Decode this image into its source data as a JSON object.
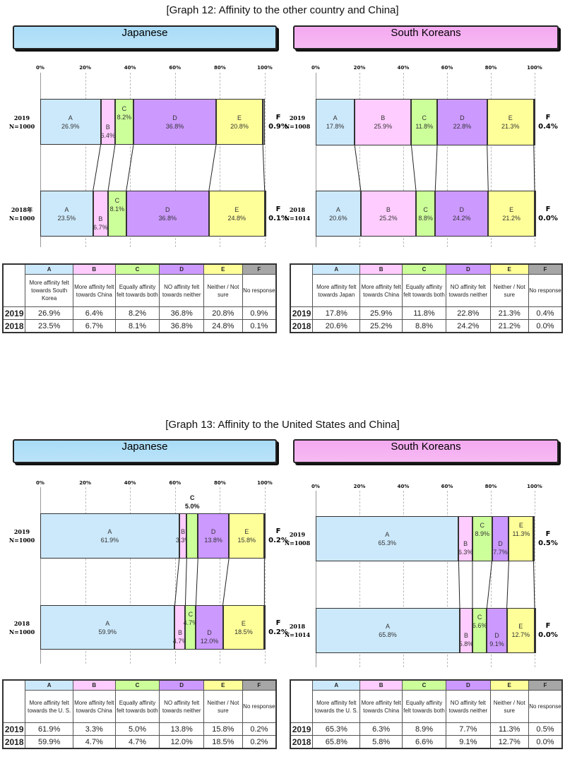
{
  "graphs": [
    {
      "title": "[Graph 12: Affinity to the other country and China]"
    },
    {
      "title": "[Graph 13: Affinity to the United States and China]"
    }
  ],
  "colors": {
    "A": "#cce9fb",
    "B": "#ffccff",
    "C": "#ccff99",
    "D": "#cc99ff",
    "E": "#ffff99",
    "F": "#a6a6a6",
    "japanese_header": "#a9dcf7",
    "korean_header": "#f4a9f0"
  },
  "chart_data": [
    {
      "type": "bar",
      "stacked": true,
      "orientation": "horizontal",
      "graph": 0,
      "header": "Japanese",
      "ticks": [
        "0%",
        "20%",
        "40%",
        "60%",
        "80%",
        "100%"
      ],
      "xlim": [
        0,
        100
      ],
      "grid": true,
      "categories": [
        "A",
        "B",
        "C",
        "D",
        "E",
        "F"
      ],
      "descriptions": [
        "More affinity felt towards South Korea",
        "More affinity felt towards China",
        "Equally affinity felt towards both",
        "NO affinity felt towards neither",
        "Neither / Not sure",
        "No response"
      ],
      "rows": [
        {
          "year": "2019",
          "label": "2019",
          "n": "N=1000",
          "values": [
            26.9,
            6.4,
            8.2,
            36.8,
            20.8,
            0.9
          ],
          "texts": [
            "26.9%",
            "6.4%",
            "8.2%",
            "36.8%",
            "20.8%",
            "0.9%"
          ]
        },
        {
          "year": "2018",
          "label": "2018年",
          "n": "N=1000",
          "values": [
            23.5,
            6.7,
            8.1,
            36.8,
            24.8,
            0.1
          ],
          "texts": [
            "23.5%",
            "6.7%",
            "8.1%",
            "36.8%",
            "24.8%",
            "0.1%"
          ]
        }
      ]
    },
    {
      "type": "bar",
      "stacked": true,
      "orientation": "horizontal",
      "graph": 0,
      "header": "South Koreans",
      "ticks": [
        "0%",
        "20%",
        "40%",
        "60%",
        "80%",
        "100%"
      ],
      "xlim": [
        0,
        100
      ],
      "grid": true,
      "categories": [
        "A",
        "B",
        "C",
        "D",
        "E",
        "F"
      ],
      "descriptions": [
        "More affinity felt towards Japan",
        "More affinity felt towards China",
        "Equally affinity felt towards both",
        "NO affinity felt towards neither",
        "Neither / Not sure",
        "No response"
      ],
      "rows": [
        {
          "year": "2019",
          "label": "2019",
          "n": "N=1008",
          "values": [
            17.8,
            25.9,
            11.8,
            22.8,
            21.3,
            0.4
          ],
          "texts": [
            "17.8%",
            "25.9%",
            "11.8%",
            "22.8%",
            "21.3%",
            "0.4%"
          ]
        },
        {
          "year": "2018",
          "label": "2018",
          "n": "N=1014",
          "values": [
            20.6,
            25.2,
            8.8,
            24.2,
            21.2,
            0.0
          ],
          "texts": [
            "20.6%",
            "25.2%",
            "8.8%",
            "24.2%",
            "21.2%",
            "0.0%"
          ]
        }
      ]
    },
    {
      "type": "bar",
      "stacked": true,
      "orientation": "horizontal",
      "graph": 1,
      "header": "Japanese",
      "ticks": [
        "0%",
        "20%",
        "40%",
        "60%",
        "80%",
        "100%"
      ],
      "xlim": [
        0,
        100
      ],
      "grid": true,
      "categories": [
        "A",
        "B",
        "C",
        "D",
        "E",
        "F"
      ],
      "descriptions": [
        "More affinity felt towards the U. S.",
        "More affinity felt towards China",
        "Equally affinity felt towards both",
        "NO affinity felt towards neither",
        "Neither / Not sure",
        "No response"
      ],
      "rows": [
        {
          "year": "2019",
          "label": "2019",
          "n": "N=1000",
          "values": [
            61.9,
            3.3,
            5.0,
            13.8,
            15.8,
            0.2
          ],
          "texts": [
            "61.9%",
            "3.3%",
            "5.0%",
            "13.8%",
            "15.8%",
            "0.2%"
          ]
        },
        {
          "year": "2018",
          "label": "2018",
          "n": "N=1000",
          "values": [
            59.9,
            4.7,
            4.7,
            12.0,
            18.5,
            0.2
          ],
          "texts": [
            "59.9%",
            "4.7%",
            "4.7%",
            "12.0%",
            "18.5%",
            "0.2%"
          ]
        }
      ]
    },
    {
      "type": "bar",
      "stacked": true,
      "orientation": "horizontal",
      "graph": 1,
      "header": "South Koreans",
      "ticks": [
        "0%",
        "20%",
        "40%",
        "60%",
        "80%",
        "100%"
      ],
      "xlim": [
        0,
        100
      ],
      "grid": true,
      "categories": [
        "A",
        "B",
        "C",
        "D",
        "E",
        "F"
      ],
      "descriptions": [
        "More affinity felt towards the U. S.",
        "More affinity felt towards China",
        "Equally affinity felt towards both",
        "NO affinity felt towards neither",
        "Neither / Not sure",
        "No response"
      ],
      "rows": [
        {
          "year": "2019",
          "label": "2019",
          "n": "N=1008",
          "values": [
            65.3,
            6.3,
            8.9,
            7.7,
            11.3,
            0.5
          ],
          "texts": [
            "65.3%",
            "6.3%",
            "8.9%",
            "7.7%",
            "11.3%",
            "0.5%"
          ]
        },
        {
          "year": "2018",
          "label": "2018",
          "n": "N=1014",
          "values": [
            65.8,
            5.8,
            6.6,
            9.1,
            12.7,
            0.0
          ],
          "texts": [
            "65.8%",
            "5.8%",
            "6.6%",
            "9.1%",
            "12.7%",
            "0.0%"
          ]
        }
      ]
    }
  ]
}
